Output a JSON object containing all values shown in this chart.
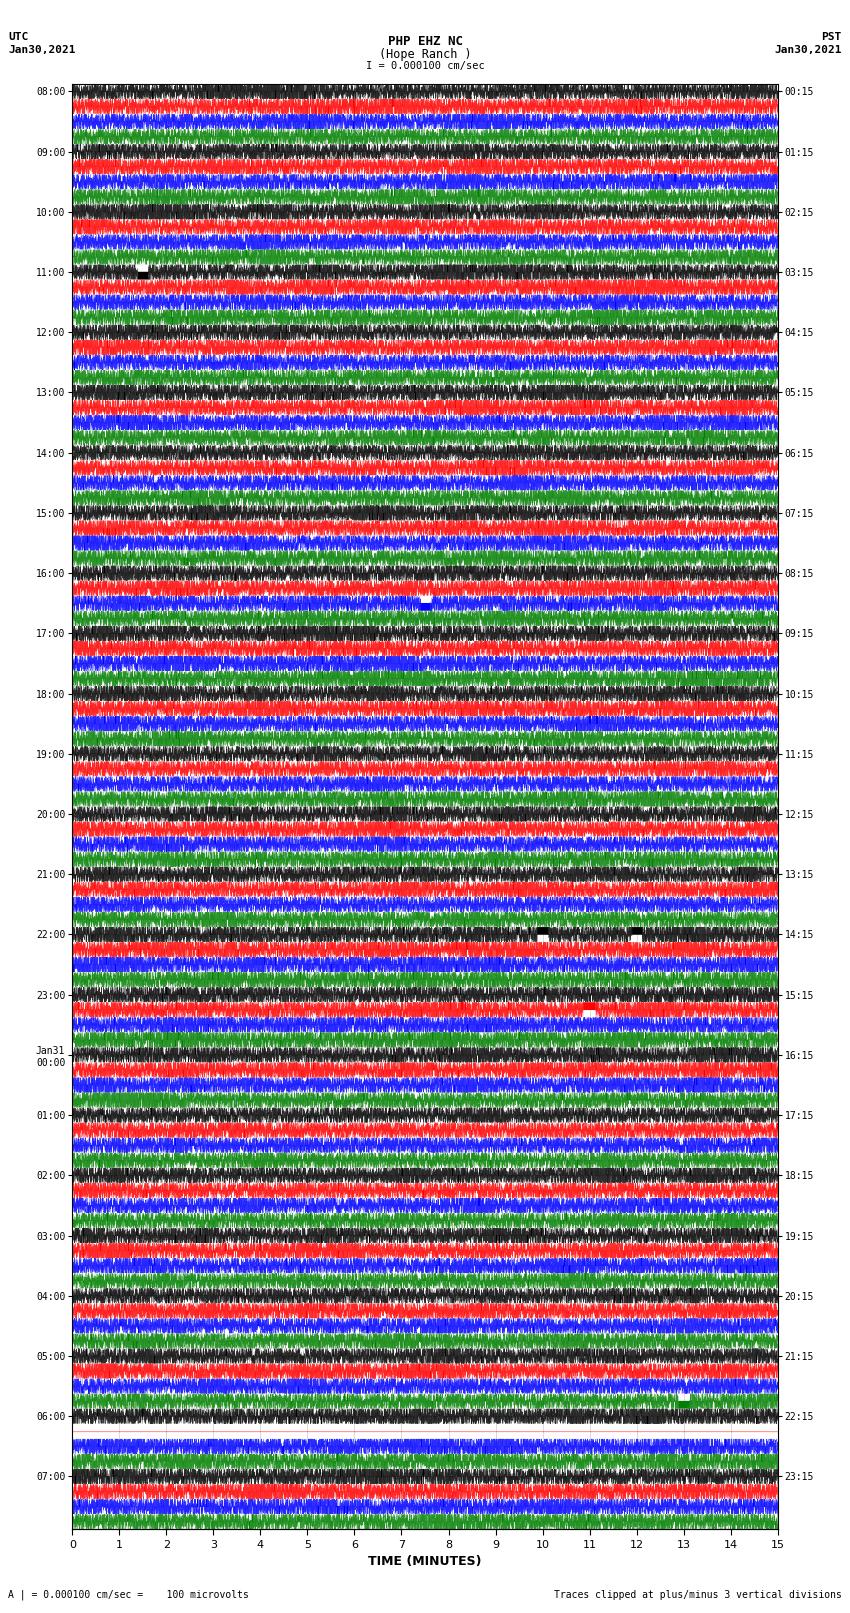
{
  "title_line1": "PHP EHZ NC",
  "title_line2": "(Hope Ranch )",
  "title_line3": "I = 0.000100 cm/sec",
  "left_label_line1": "UTC",
  "left_label_line2": "Jan30,2021",
  "right_label_line1": "PST",
  "right_label_line2": "Jan30,2021",
  "xlabel": "TIME (MINUTES)",
  "bottom_left_note": "A | = 0.000100 cm/sec =    100 microvolts",
  "bottom_right_note": "Traces clipped at plus/minus 3 vertical divisions",
  "utc_times": [
    "08:00",
    "09:00",
    "10:00",
    "11:00",
    "12:00",
    "13:00",
    "14:00",
    "15:00",
    "16:00",
    "17:00",
    "18:00",
    "19:00",
    "20:00",
    "21:00",
    "22:00",
    "23:00",
    "Jan31\n00:00",
    "01:00",
    "02:00",
    "03:00",
    "04:00",
    "05:00",
    "06:00",
    "07:00"
  ],
  "pst_times": [
    "00:15",
    "01:15",
    "02:15",
    "03:15",
    "04:15",
    "05:15",
    "06:15",
    "07:15",
    "08:15",
    "09:15",
    "10:15",
    "11:15",
    "12:15",
    "13:15",
    "14:15",
    "15:15",
    "16:15",
    "17:15",
    "18:15",
    "19:15",
    "20:15",
    "21:15",
    "22:15",
    "23:15"
  ],
  "num_rows": 24,
  "traces_per_row": 4,
  "colors": [
    "black",
    "red",
    "blue",
    "green"
  ],
  "xmin": 0,
  "xmax": 15,
  "minutes_ticks": [
    0,
    1,
    2,
    3,
    4,
    5,
    6,
    7,
    8,
    9,
    10,
    11,
    12,
    13,
    14,
    15
  ],
  "bg_color": "white",
  "special_row_22_blank": true
}
